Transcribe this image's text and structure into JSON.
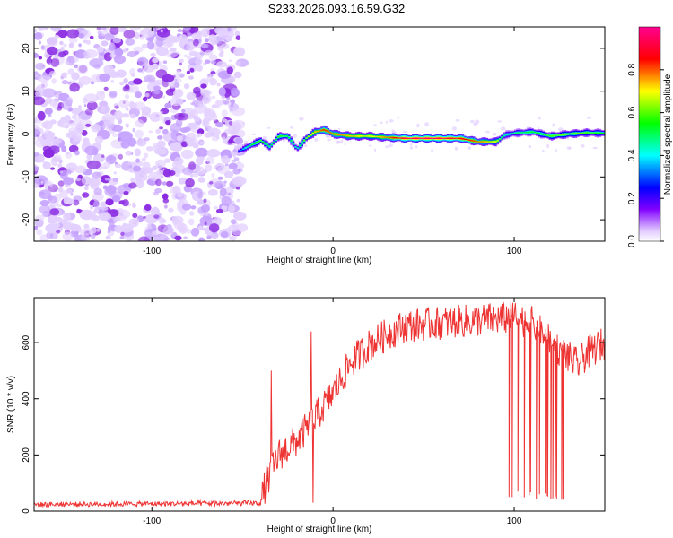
{
  "title": "S233.2026.093.16.59.G32",
  "chart_data": [
    {
      "type": "heatmap",
      "xlabel": "Height of straight line (km)",
      "ylabel": "Frequency (Hz)",
      "xlim": [
        -165,
        150
      ],
      "ylim": [
        -25,
        25
      ],
      "xticks": [
        -100,
        0,
        100
      ],
      "yticks": [
        -20,
        -10,
        0,
        10,
        20
      ],
      "colorbar": {
        "label": "Normalized spectral amplitude",
        "range": [
          0,
          1
        ],
        "ticks": [
          "0.0",
          "0.2",
          "0.4",
          "0.6",
          "0.8"
        ],
        "colors": [
          "#ffffff",
          "#d9b3ff",
          "#8000ff",
          "#0000ff",
          "#00ffff",
          "#00ff00",
          "#ffff00",
          "#ff0000",
          "#ff00a0"
        ]
      },
      "noise_region_x": [
        -165,
        -52
      ],
      "signal_track": {
        "x": [
          -52,
          -45,
          -40,
          -35,
          -30,
          -25,
          -20,
          -15,
          -10,
          -5,
          0,
          10,
          20,
          30,
          40,
          50,
          60,
          70,
          80,
          90,
          95,
          100,
          110,
          120,
          130,
          140,
          150
        ],
        "freq": [
          -4,
          -2.5,
          -1.5,
          -3,
          -0.5,
          -0.5,
          -3.5,
          -1,
          0.5,
          1,
          0,
          -0.5,
          -0.5,
          -0.8,
          -1,
          -1,
          -1,
          -1,
          -1.8,
          -1.8,
          -0.2,
          0.2,
          0.5,
          -0.5,
          0,
          0.3,
          0.2
        ],
        "peak_amplitude": [
          0.3,
          0.55,
          0.6,
          0.5,
          0.6,
          0.55,
          0.45,
          0.65,
          0.75,
          0.85,
          0.8,
          0.75,
          0.7,
          0.8,
          0.95,
          0.98,
          0.95,
          0.9,
          0.8,
          0.7,
          0.45,
          0.5,
          0.55,
          0.6,
          0.65,
          0.6,
          0.55
        ]
      }
    },
    {
      "type": "line",
      "xlabel": "Height of straight line (km)",
      "ylabel": "SNR (10 * v/v)",
      "xlim": [
        -165,
        150
      ],
      "ylim": [
        0,
        760
      ],
      "xticks": [
        -100,
        0,
        100
      ],
      "yticks": [
        0,
        200,
        400,
        600
      ],
      "color": "#ee3333",
      "envelope": {
        "x": [
          -165,
          -40,
          -38,
          -30,
          -20,
          -10,
          0,
          10,
          20,
          30,
          40,
          60,
          80,
          100,
          110,
          120,
          128,
          135,
          140,
          145,
          150
        ],
        "y": [
          20,
          25,
          80,
          200,
          250,
          330,
          420,
          530,
          590,
          630,
          660,
          670,
          680,
          690,
          670,
          600,
          560,
          520,
          560,
          580,
          600
        ]
      },
      "dropouts": {
        "x_range": [
          97,
          128
        ],
        "low_value": 40
      },
      "spikes": [
        {
          "x": -34,
          "y": 500
        },
        {
          "x": -12,
          "y": 640
        },
        {
          "x": -11,
          "y": 30
        }
      ]
    }
  ]
}
